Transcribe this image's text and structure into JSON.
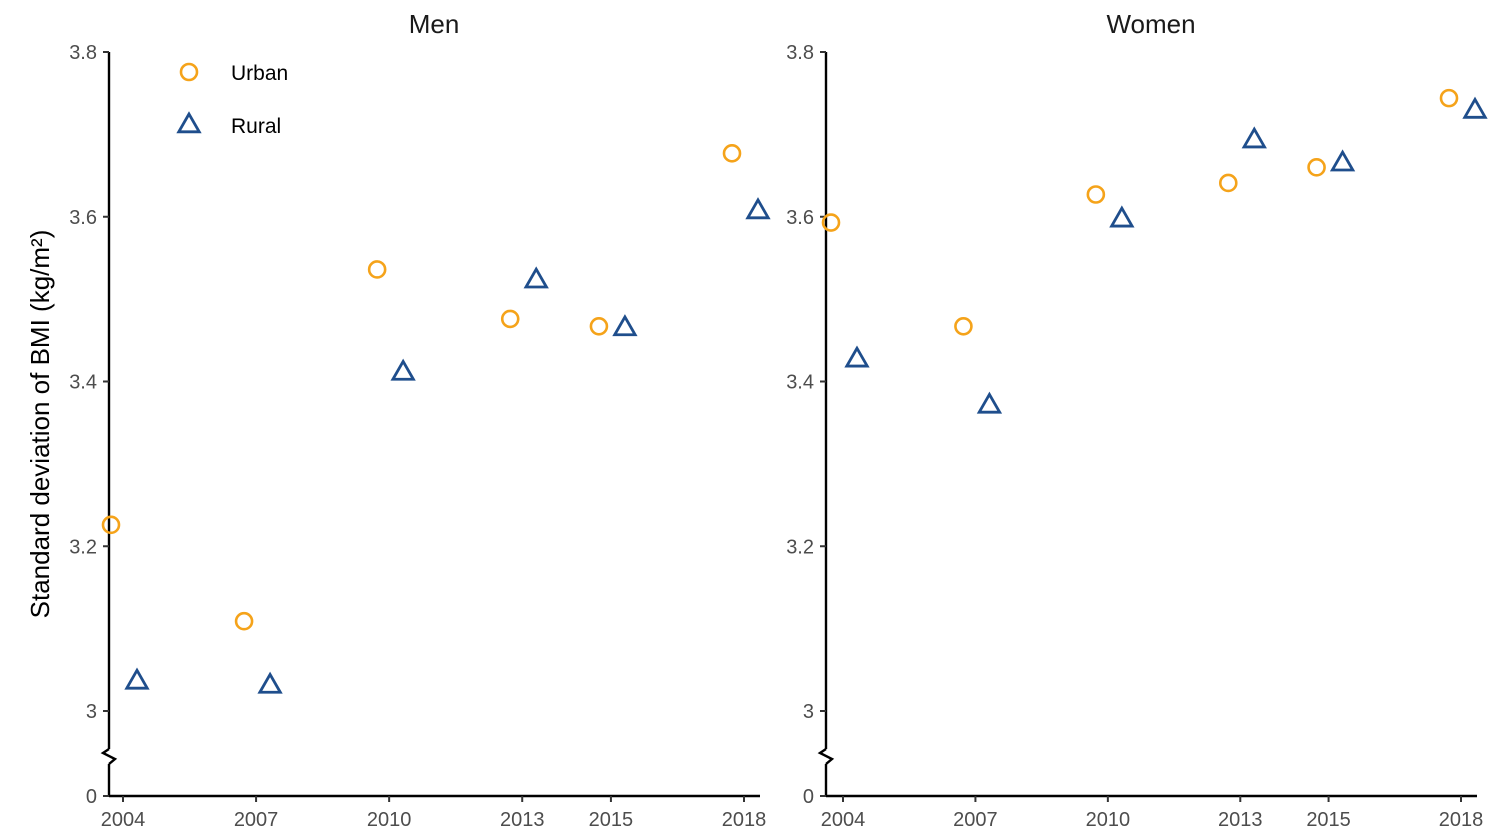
{
  "chart_data": {
    "type": "scatter",
    "ylabel": "Standard deviation of BMI (kg/m²)",
    "x_ticks": [
      2004,
      2007,
      2010,
      2013,
      2015,
      2018
    ],
    "y_ticks": [
      0,
      3,
      3.2,
      3.4,
      3.6,
      3.8
    ],
    "y_tick_labels": [
      "0",
      "3",
      "3.2",
      "3.4",
      "3.6",
      "3.8"
    ],
    "y_axis_break": "between 0 and 3",
    "ylim_upper": [
      3,
      3.8
    ],
    "legend": {
      "placement": "top-left of first panel",
      "entries": [
        {
          "name": "Urban",
          "marker": "circle",
          "color": "#F5A31A"
        },
        {
          "name": "Rural",
          "marker": "triangle",
          "color": "#1F4E8C"
        }
      ]
    },
    "panels": [
      {
        "title": "Men",
        "series": [
          {
            "name": "Urban",
            "x": [
              2004,
              2007,
              2010,
              2013,
              2015,
              2018
            ],
            "values": [
              3.226,
              3.109,
              3.536,
              3.476,
              3.467,
              3.677
            ]
          },
          {
            "name": "Rural",
            "x": [
              2004,
              2007,
              2010,
              2013,
              2015,
              2018
            ],
            "values": [
              3.036,
              3.031,
              3.411,
              3.523,
              3.465,
              3.607
            ]
          }
        ]
      },
      {
        "title": "Women",
        "series": [
          {
            "name": "Urban",
            "x": [
              2004,
              2007,
              2010,
              2013,
              2015,
              2018
            ],
            "values": [
              3.593,
              3.467,
              3.627,
              3.641,
              3.66,
              3.744
            ]
          },
          {
            "name": "Rural",
            "x": [
              2004,
              2007,
              2010,
              2013,
              2015,
              2018
            ],
            "values": [
              3.427,
              3.371,
              3.597,
              3.693,
              3.665,
              3.729
            ]
          }
        ]
      }
    ]
  }
}
